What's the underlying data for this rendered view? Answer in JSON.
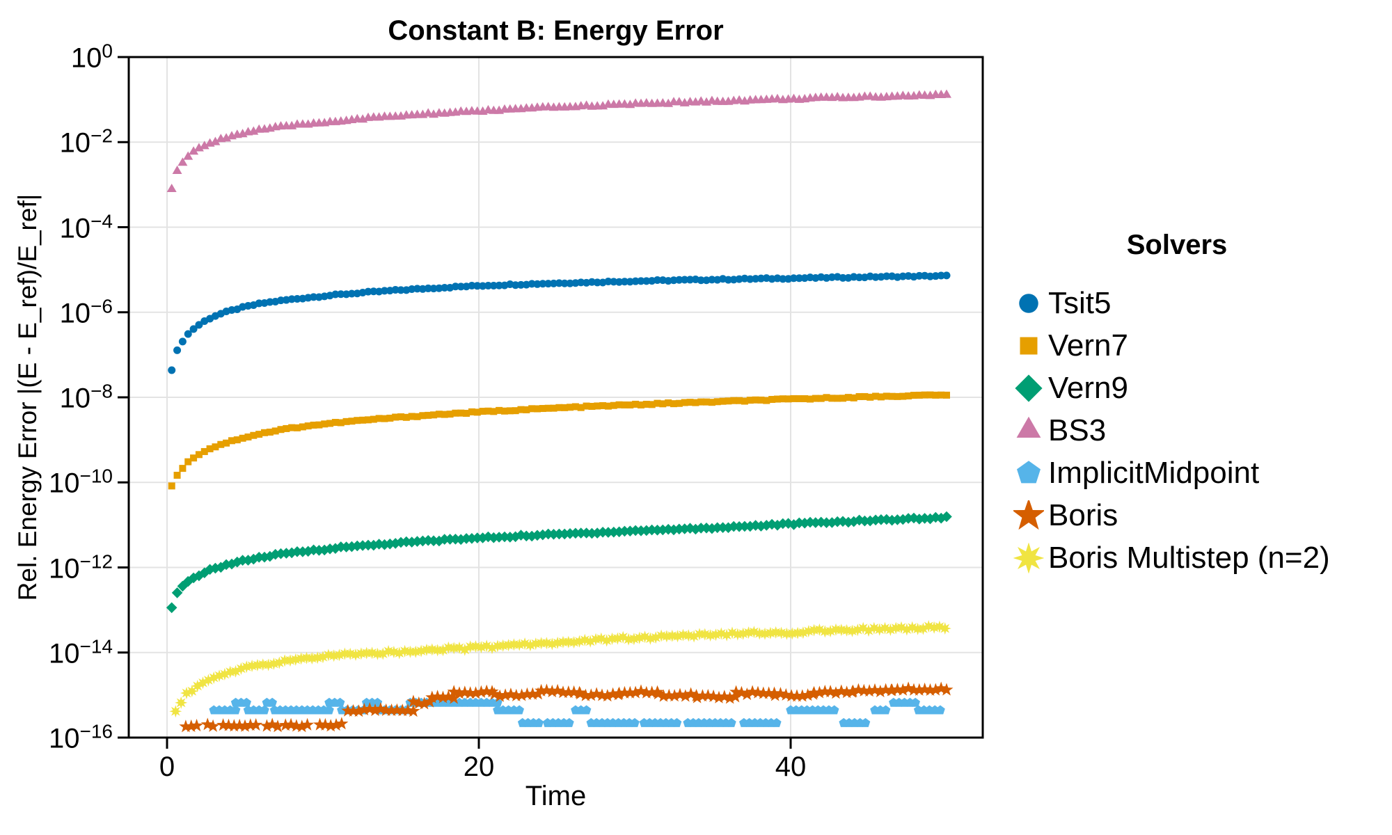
{
  "title": "Constant B: Energy Error",
  "x_axis": {
    "label": "Time",
    "ticks": [
      0,
      20,
      40
    ],
    "range": [
      -2.45,
      52.3
    ]
  },
  "y_axis": {
    "label": "Rel. Energy Error |(E - E_ref)/E_ref|",
    "scale": "log10",
    "tick_exponents": [
      0,
      -2,
      -4,
      -6,
      -8,
      -10,
      -12,
      -14,
      -16
    ],
    "range_exponents": [
      0,
      -16
    ]
  },
  "legend": {
    "title": "Solvers"
  },
  "colors": {
    "background": "#FFFFFF",
    "axis": "#000000",
    "grid": "#E3E3E3",
    "tsit5": "#0072B2",
    "vern7": "#E69F00",
    "vern9": "#009E73",
    "bs3": "#CC79A7",
    "implicit_midpoint": "#56B4E9",
    "boris": "#D55E00",
    "boris_multistep": "#F0E442"
  },
  "chart_data": {
    "type": "scatter",
    "title": "Constant B: Energy Error",
    "xlabel": "Time",
    "ylabel": "Rel. Energy Error |(E - E_ref)/E_ref|",
    "grid": true,
    "legend_position": "right",
    "series": [
      {
        "name": "Tsit5",
        "marker": "circle",
        "color": "#0072B2",
        "size": 5.5,
        "t_start": 0.3,
        "t_step": 0.35,
        "jitter_log": 0.015,
        "anchors": [
          [
            0.3,
            4.5e-08
          ],
          [
            0.5,
            9e-08
          ],
          [
            0.8,
            1.6e-07
          ],
          [
            1.5,
            3.5e-07
          ],
          [
            3,
            8e-07
          ],
          [
            6,
            1.6e-06
          ],
          [
            10,
            2.4e-06
          ],
          [
            20,
            4.2e-06
          ],
          [
            30,
            5.4e-06
          ],
          [
            40,
            6.3e-06
          ],
          [
            50,
            7.2e-06
          ]
        ]
      },
      {
        "name": "Vern7",
        "marker": "square",
        "color": "#E69F00",
        "size": 5,
        "t_start": 0.3,
        "t_step": 0.35,
        "jitter_log": 0.015,
        "anchors": [
          [
            0.3,
            8e-11
          ],
          [
            0.6,
            1.4e-10
          ],
          [
            1,
            2.2e-10
          ],
          [
            2,
            4.5e-10
          ],
          [
            4,
            9e-10
          ],
          [
            8,
            1.9e-09
          ],
          [
            15,
            3.4e-09
          ],
          [
            25,
            5.6e-09
          ],
          [
            35,
            7.8e-09
          ],
          [
            50,
            1.15e-08
          ]
        ]
      },
      {
        "name": "Vern9",
        "marker": "diamond",
        "color": "#009E73",
        "size": 6.5,
        "t_start": 0.3,
        "t_step": 0.35,
        "jitter_log": 0.02,
        "anchors": [
          [
            0.3,
            1.1e-13
          ],
          [
            0.5,
            2e-13
          ],
          [
            1,
            3.5e-13
          ],
          [
            2,
            6.5e-13
          ],
          [
            4,
            1.2e-12
          ],
          [
            8,
            2.2e-12
          ],
          [
            15,
            3.8e-12
          ],
          [
            25,
            6e-12
          ],
          [
            35,
            8.5e-12
          ],
          [
            50,
            1.5e-11
          ]
        ]
      },
      {
        "name": "BS3",
        "marker": "triangle",
        "color": "#CC79A7",
        "size": 7,
        "t_start": 0.3,
        "t_step": 0.35,
        "jitter_log": 0.02,
        "anchors": [
          [
            0.3,
            0.0008
          ],
          [
            0.5,
            0.0015
          ],
          [
            0.8,
            0.0026
          ],
          [
            1.5,
            0.005
          ],
          [
            3,
            0.01
          ],
          [
            6,
            0.019
          ],
          [
            10,
            0.028
          ],
          [
            20,
            0.052
          ],
          [
            30,
            0.076
          ],
          [
            40,
            0.1
          ],
          [
            50,
            0.125
          ]
        ]
      },
      {
        "name": "ImplicitMidpoint",
        "marker": "pentagon",
        "color": "#56B4E9",
        "size": 6.5,
        "t_step": 0.35,
        "jitter_log": 0,
        "runs": [
          [
            3.0,
            4.4,
            4.4e-16
          ],
          [
            4.4,
            5.2,
            6.6e-16
          ],
          [
            5.2,
            6.4,
            4.4e-16
          ],
          [
            6.4,
            6.9,
            6.6e-16
          ],
          [
            6.9,
            10.4,
            4.4e-16
          ],
          [
            10.4,
            11.2,
            6.6e-16
          ],
          [
            11.2,
            12.8,
            4.4e-16
          ],
          [
            12.8,
            13.6,
            6.6e-16
          ],
          [
            13.6,
            15.6,
            4.4e-16
          ],
          [
            15.6,
            21.2,
            6.6e-16
          ],
          [
            21.2,
            22.6,
            4.4e-16
          ],
          [
            22.8,
            24.0,
            2.2e-16
          ],
          [
            24.4,
            26.0,
            2.2e-16
          ],
          [
            26.2,
            27.0,
            4.4e-16
          ],
          [
            27.2,
            30.2,
            2.2e-16
          ],
          [
            30.6,
            33.0,
            2.2e-16
          ],
          [
            33.4,
            36.4,
            2.2e-16
          ],
          [
            37.0,
            39.4,
            2.2e-16
          ],
          [
            40.0,
            43.0,
            4.4e-16
          ],
          [
            43.4,
            45.0,
            2.2e-16
          ],
          [
            45.4,
            46.2,
            4.4e-16
          ],
          [
            46.6,
            48.0,
            6.6e-16
          ],
          [
            48.2,
            49.6,
            4.4e-16
          ]
        ]
      },
      {
        "name": "Boris",
        "marker": "star5",
        "color": "#D55E00",
        "size": 8,
        "t_step": 0.35,
        "jitter_log": 0.03,
        "runs": [
          [
            1.2,
            2.2,
            1.9e-16
          ],
          [
            2.6,
            3.2,
            1.9e-16
          ],
          [
            3.6,
            6.0,
            1.9e-16
          ],
          [
            6.4,
            7.2,
            1.9e-16
          ],
          [
            7.6,
            9.2,
            1.9e-16
          ],
          [
            9.8,
            11.5,
            2e-16
          ],
          [
            11.6,
            15.8,
            4.4e-16
          ],
          [
            15.8,
            17.0,
            6.6e-16
          ],
          [
            17.0,
            18.4,
            9e-16
          ],
          [
            18.4,
            21.0,
            1.15e-15
          ],
          [
            21.0,
            24.0,
            1e-15
          ],
          [
            24.0,
            26.5,
            1.2e-15
          ],
          [
            26.5,
            29.0,
            1e-15
          ],
          [
            29.0,
            31.5,
            1.15e-15
          ],
          [
            31.5,
            34.0,
            1e-15
          ],
          [
            34.0,
            36.5,
            9e-16
          ],
          [
            36.5,
            39.0,
            1.1e-15
          ],
          [
            39.0,
            41.5,
            1e-15
          ],
          [
            41.5,
            44.0,
            1.15e-15
          ],
          [
            44.0,
            46.5,
            1.25e-15
          ],
          [
            46.5,
            50.0,
            1.35e-15
          ]
        ]
      },
      {
        "name": "Boris Multistep (n=2)",
        "marker": "star8",
        "color": "#F0E442",
        "size": 7.5,
        "t_start": 0.55,
        "t_step": 0.35,
        "jitter_log": 0.035,
        "anchors": [
          [
            0.55,
            4e-16
          ],
          [
            1.2,
            1e-15
          ],
          [
            2.4,
            2e-15
          ],
          [
            5,
            4.2e-15
          ],
          [
            9,
            7.5e-15
          ],
          [
            15,
            1.05e-14
          ],
          [
            20,
            1.3e-14
          ],
          [
            30,
            2.2e-14
          ],
          [
            40,
            3e-14
          ],
          [
            50,
            4e-14
          ]
        ]
      }
    ]
  }
}
